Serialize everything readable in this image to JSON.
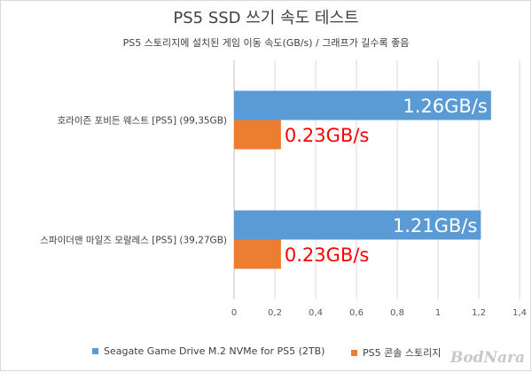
{
  "chart_data": {
    "type": "bar",
    "orientation": "horizontal",
    "title": "PS5 SSD 쓰기 속도 테스트",
    "subtitle": "PS5 스토리지에 설치된 게임 이동 속도(GB/s) / 그래프가 길수록 좋음",
    "categories": [
      "호라이즌 포비든 웨스트 [PS5] (99,35GB)",
      "스파이더맨 마일즈 모랄레스 [PS5] (39,27GB)"
    ],
    "series": [
      {
        "name": "Seagate Game Drive M.2 NVMe for PS5 (2TB)",
        "values": [
          1.26,
          1.21
        ],
        "labels": [
          "1.26GB/s",
          "1.21GB/s"
        ],
        "color": "#5b9bd5",
        "label_color": "#ffffff"
      },
      {
        "name": "PS5 콘솔 스토리지",
        "values": [
          0.23,
          0.23
        ],
        "labels": [
          "0.23GB/s",
          "0.23GB/s"
        ],
        "color": "#ed7d31",
        "label_color": "#ff0000"
      }
    ],
    "xlim": [
      0,
      1.4
    ],
    "ticks": [
      "0",
      "0,2",
      "0,4",
      "0,6",
      "0,8",
      "1",
      "1,2",
      "1,4"
    ],
    "grid": true,
    "legend_position": "bottom"
  },
  "watermark": "BodNara"
}
